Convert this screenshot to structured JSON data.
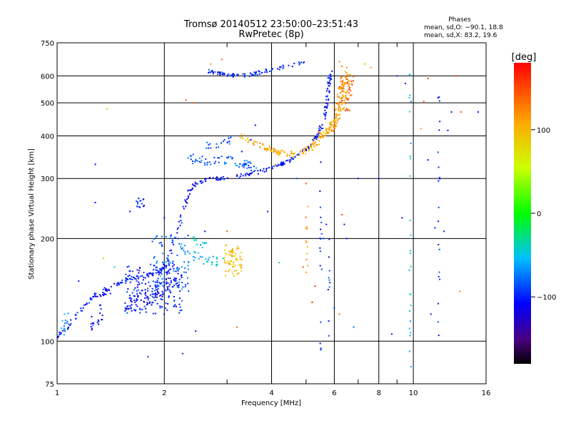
{
  "chart_data": {
    "type": "scatter",
    "title": "Tromsø 20140512 23:50:00–23:51:43",
    "subtitle": "RwPretec (8p)",
    "xlabel": "Frequency [MHz]",
    "ylabel": "Stationary phase Virtual Height [km]",
    "x_scale": "log",
    "y_scale": "log",
    "xlim": [
      1,
      16
    ],
    "ylim": [
      75,
      750
    ],
    "x_ticks": [
      1,
      2,
      4,
      6,
      8,
      10,
      16
    ],
    "x_tick_labels": [
      "1",
      "2",
      "4",
      "6",
      "8",
      "10",
      "16"
    ],
    "x_minor_ticks": [
      3,
      5,
      7,
      9
    ],
    "y_ticks": [
      75,
      100,
      200,
      300,
      400,
      500,
      600,
      750
    ],
    "y_tick_labels": [
      "75",
      "100",
      "200",
      "300",
      "400",
      "500",
      "600",
      "750"
    ],
    "grid": true,
    "stats": {
      "heading": "Phases",
      "line_o": "mean, sd,O: −90.1, 18.8",
      "line_x": "mean, sd,X:  83.2, 19.6"
    },
    "colorbar": {
      "label": "[deg]",
      "range": [
        -180,
        180
      ],
      "ticks": [
        100,
        0,
        -100
      ],
      "tick_labels": [
        "100",
        "0",
        "−100"
      ]
    },
    "series": [
      {
        "traces": [
          {
            "type": "curve",
            "pts": [
              [
                1.0,
                102
              ],
              [
                1.05,
                108
              ],
              [
                1.12,
                118
              ],
              [
                1.2,
                128
              ],
              [
                1.28,
                136
              ],
              [
                1.38,
                143
              ],
              [
                1.5,
                148
              ],
              [
                1.62,
                152
              ],
              [
                1.75,
                155
              ],
              [
                1.9,
                158
              ],
              [
                2.0,
                165
              ],
              [
                2.08,
                180
              ],
              [
                2.15,
                200
              ],
              [
                2.22,
                225
              ],
              [
                2.28,
                250
              ],
              [
                2.35,
                272
              ],
              [
                2.45,
                290
              ],
              [
                2.6,
                298
              ],
              [
                2.8,
                300
              ],
              [
                3.1,
                302
              ],
              [
                3.4,
                307
              ],
              [
                3.7,
                314
              ],
              [
                4.0,
                322
              ],
              [
                4.3,
                332
              ],
              [
                4.6,
                344
              ],
              [
                4.9,
                358
              ],
              [
                5.1,
                372
              ],
              [
                5.3,
                392
              ],
              [
                5.45,
                412
              ],
              [
                5.55,
                432
              ],
              [
                5.65,
                462
              ],
              [
                5.72,
                500
              ],
              [
                5.78,
                545
              ],
              [
                5.82,
                585
              ],
              [
                5.86,
                630
              ]
            ],
            "phase": -105,
            "n": 340,
            "spread": 0.012
          },
          {
            "type": "curve",
            "pts": [
              [
                1.55,
                125
              ],
              [
                1.65,
                130
              ],
              [
                1.8,
                134
              ],
              [
                1.95,
                138
              ],
              [
                2.05,
                145
              ],
              [
                2.12,
                158
              ]
            ],
            "phase": -110,
            "n": 90,
            "spread": 0.05
          },
          {
            "type": "cloud",
            "x": [
              1.55,
              2.25
            ],
            "y": [
              120,
              168
            ],
            "phase": -100,
            "n": 170
          },
          {
            "type": "cloud",
            "x": [
              1.85,
              2.35
            ],
            "y": [
              140,
              205
            ],
            "phase": -80,
            "n": 80
          },
          {
            "type": "curve",
            "pts": [
              [
                1.3,
                120
              ],
              [
                1.35,
                135
              ],
              [
                1.4,
                142
              ]
            ],
            "phase": -110,
            "n": 18,
            "spread": 0.02
          },
          {
            "type": "curve",
            "pts": [
              [
                1.22,
                108
              ],
              [
                1.28,
                112
              ],
              [
                1.32,
                118
              ]
            ],
            "phase": -110,
            "n": 14,
            "spread": 0.02
          },
          {
            "type": "curve",
            "pts": [
              [
                1.02,
                104
              ],
              [
                1.05,
                110
              ],
              [
                1.07,
                120
              ]
            ],
            "phase": -70,
            "n": 14,
            "spread": 0.02
          },
          {
            "type": "curve",
            "pts": [
              [
                2.3,
                180
              ],
              [
                2.5,
                176
              ],
              [
                2.7,
                172
              ],
              [
                2.9,
                170
              ]
            ],
            "phase": -55,
            "n": 28,
            "spread": 0.03
          },
          {
            "type": "curve",
            "pts": [
              [
                2.35,
                200
              ],
              [
                2.5,
                195
              ],
              [
                2.65,
                190
              ]
            ],
            "phase": -45,
            "n": 14,
            "spread": 0.03
          },
          {
            "type": "cloud",
            "x": [
              2.95,
              3.3
            ],
            "y": [
              155,
              192
            ],
            "phase": 95,
            "n": 65
          },
          {
            "type": "curve",
            "pts": [
              [
                2.35,
                345
              ],
              [
                2.5,
                338
              ],
              [
                2.65,
                336
              ],
              [
                2.85,
                338
              ],
              [
                3.05,
                340
              ],
              [
                3.3,
                333
              ],
              [
                3.6,
                322
              ]
            ],
            "phase": -80,
            "n": 70,
            "spread": 0.03
          },
          {
            "type": "curve",
            "pts": [
              [
                2.6,
                372
              ],
              [
                2.8,
                375
              ],
              [
                3.0,
                385
              ],
              [
                3.1,
                396
              ]
            ],
            "phase": -85,
            "n": 20,
            "spread": 0.03
          },
          {
            "type": "curve",
            "pts": [
              [
                2.6,
                620
              ],
              [
                2.8,
                610
              ],
              [
                3.0,
                604
              ],
              [
                3.2,
                600
              ],
              [
                3.5,
                605
              ],
              [
                3.8,
                618
              ],
              [
                4.1,
                630
              ],
              [
                4.5,
                642
              ],
              [
                4.9,
                652
              ]
            ],
            "phase": -100,
            "n": 85,
            "spread": 0.012
          },
          {
            "type": "curve",
            "pts": [
              [
                3.3,
                398
              ],
              [
                3.6,
                382
              ],
              [
                3.9,
                368
              ],
              [
                4.2,
                358
              ],
              [
                4.6,
                352
              ],
              [
                5.0,
                360
              ],
              [
                5.3,
                380
              ],
              [
                5.6,
                405
              ],
              [
                5.9,
                425
              ],
              [
                6.1,
                445
              ],
              [
                6.3,
                485
              ],
              [
                6.4,
                530
              ],
              [
                6.5,
                580
              ],
              [
                6.55,
                625
              ]
            ],
            "phase": 105,
            "n": 210,
            "spread": 0.02
          },
          {
            "type": "curve",
            "pts": [
              [
                5.9,
                420
              ],
              [
                6.05,
                460
              ],
              [
                6.2,
                505
              ],
              [
                6.3,
                555
              ],
              [
                6.4,
                600
              ]
            ],
            "phase": 125,
            "n": 60,
            "spread": 0.02
          },
          {
            "type": "curve",
            "pts": [
              [
                6.5,
                470
              ],
              [
                6.6,
                540
              ],
              [
                6.7,
                600
              ]
            ],
            "phase": 140,
            "n": 30,
            "spread": 0.02
          },
          {
            "type": "curve",
            "pts": [
              [
                1.7,
                250
              ],
              [
                1.72,
                262
              ]
            ],
            "phase": -100,
            "n": 14,
            "spread": 0.03
          },
          {
            "type": "curve",
            "pts": [
              [
                5.0,
                150
              ],
              [
                5.05,
                250
              ]
            ],
            "phase": 110,
            "n": 12,
            "spread": 0.01
          },
          {
            "type": "curve",
            "pts": [
              [
                5.5,
                90
              ],
              [
                5.5,
                300
              ]
            ],
            "phase": -100,
            "n": 16,
            "spread": 0.006
          },
          {
            "type": "curve",
            "pts": [
              [
                5.8,
                95
              ],
              [
                5.8,
                240
              ]
            ],
            "phase": -90,
            "n": 10,
            "spread": 0.006
          },
          {
            "type": "curve",
            "pts": [
              [
                9.8,
                80
              ],
              [
                9.8,
                650
              ]
            ],
            "phase": -50,
            "n": 26,
            "spread": 0.006
          },
          {
            "type": "curve",
            "pts": [
              [
                11.8,
                100
              ],
              [
                11.8,
                600
              ]
            ],
            "phase": -100,
            "n": 20,
            "spread": 0.006
          }
        ]
      }
    ],
    "extra_points": [
      [
        1.0,
        100,
        -60
      ],
      [
        1.05,
        108,
        -60
      ],
      [
        1.15,
        150,
        -100
      ],
      [
        1.38,
        480,
        90
      ],
      [
        1.28,
        255,
        -110
      ],
      [
        1.28,
        330,
        -105
      ],
      [
        1.25,
        118,
        -110
      ],
      [
        1.35,
        175,
        90
      ],
      [
        1.45,
        165,
        -40
      ],
      [
        1.8,
        90,
        -95
      ],
      [
        1.6,
        240,
        -110
      ],
      [
        1.95,
        155,
        -50
      ],
      [
        2.0,
        230,
        -110
      ],
      [
        2.25,
        92,
        -100
      ],
      [
        2.45,
        107,
        -110
      ],
      [
        2.7,
        650,
        110
      ],
      [
        2.9,
        670,
        140
      ],
      [
        2.6,
        210,
        -110
      ],
      [
        2.3,
        510,
        150
      ],
      [
        2.4,
        500,
        150
      ],
      [
        2.45,
        290,
        -110
      ],
      [
        3.0,
        210,
        150
      ],
      [
        3.2,
        110,
        140
      ],
      [
        3.1,
        185,
        130
      ],
      [
        3.5,
        390,
        -120
      ],
      [
        3.6,
        430,
        -110
      ],
      [
        3.9,
        240,
        -100
      ],
      [
        4.2,
        170,
        -20
      ],
      [
        4.5,
        350,
        110
      ],
      [
        4.7,
        300,
        -90
      ],
      [
        5.0,
        290,
        150
      ],
      [
        5.2,
        130,
        170
      ],
      [
        5.4,
        410,
        140
      ],
      [
        5.5,
        335,
        -110
      ],
      [
        5.6,
        200,
        -90
      ],
      [
        5.7,
        220,
        -100
      ],
      [
        6.0,
        125,
        -90
      ],
      [
        6.2,
        120,
        130
      ],
      [
        6.3,
        235,
        150
      ],
      [
        6.4,
        220,
        -105
      ],
      [
        6.5,
        200,
        -100
      ],
      [
        6.8,
        110,
        -80
      ],
      [
        7.0,
        300,
        -110
      ],
      [
        7.3,
        650,
        100
      ],
      [
        7.6,
        635,
        110
      ],
      [
        8.0,
        300,
        -110
      ],
      [
        8.7,
        105,
        -100
      ],
      [
        9.0,
        600,
        -100
      ],
      [
        9.3,
        230,
        -110
      ],
      [
        9.5,
        570,
        -110
      ],
      [
        10.5,
        420,
        120
      ],
      [
        10.7,
        505,
        140
      ],
      [
        11.0,
        590,
        160
      ],
      [
        11.0,
        340,
        -110
      ],
      [
        11.2,
        120,
        -100
      ],
      [
        11.5,
        215,
        -100
      ],
      [
        12.2,
        210,
        -100
      ],
      [
        12.5,
        415,
        -110
      ],
      [
        12.8,
        470,
        -120
      ],
      [
        13.2,
        600,
        160
      ],
      [
        13.5,
        140,
        130
      ],
      [
        13.6,
        470,
        150
      ],
      [
        15.2,
        470,
        -110
      ],
      [
        4.9,
        165,
        150
      ],
      [
        5.3,
        145,
        170
      ],
      [
        6.3,
        640,
        130
      ],
      [
        6.2,
        660,
        120
      ],
      [
        4.1,
        330,
        110
      ],
      [
        3.3,
        360,
        -120
      ]
    ]
  }
}
